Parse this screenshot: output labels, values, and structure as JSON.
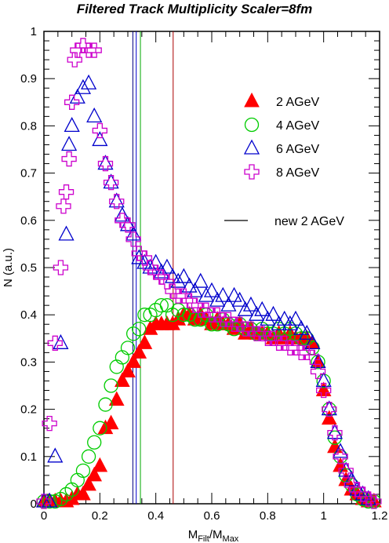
{
  "chart_data": {
    "type": "scatter",
    "title": "Filtered Track Multiplicity Scaler=8fm",
    "xlabel": {
      "main": "M",
      "sub1": "Filt",
      "sep": "/M",
      "sub2": "Max"
    },
    "ylabel": "N (a.u.)",
    "xlim": [
      0,
      1.2
    ],
    "ylim": [
      0,
      1
    ],
    "xticks": [
      "0",
      "0.2",
      "0.4",
      "0.6",
      "0.8",
      "1",
      "1.2"
    ],
    "yticks": [
      "0",
      "0.1",
      "0.2",
      "0.3",
      "0.4",
      "0.5",
      "0.6",
      "0.7",
      "0.8",
      "0.9",
      "1"
    ],
    "grid": false,
    "legend_position": "right",
    "legend_line_label": "new 2 AGeV",
    "vertical_lines": [
      {
        "x": 0.318,
        "color": "#000080"
      },
      {
        "x": 0.33,
        "color": "#0000cc"
      },
      {
        "x": 0.345,
        "color": "#00aa00"
      },
      {
        "x": 0.462,
        "color": "#aa0000"
      }
    ],
    "series": [
      {
        "name": "2 AGeV",
        "marker": "triangle-filled",
        "color": "#ff0000",
        "x": [
          0.0,
          0.02,
          0.04,
          0.06,
          0.08,
          0.1,
          0.12,
          0.14,
          0.16,
          0.18,
          0.2,
          0.22,
          0.24,
          0.26,
          0.28,
          0.3,
          0.32,
          0.34,
          0.36,
          0.38,
          0.4,
          0.42,
          0.44,
          0.46,
          0.48,
          0.5,
          0.52,
          0.54,
          0.56,
          0.58,
          0.6,
          0.62,
          0.64,
          0.66,
          0.68,
          0.7,
          0.72,
          0.74,
          0.76,
          0.78,
          0.8,
          0.82,
          0.84,
          0.86,
          0.88,
          0.9,
          0.92,
          0.94,
          0.96,
          0.98,
          1.0,
          1.02,
          1.04,
          1.06,
          1.08,
          1.1,
          1.12,
          1.14,
          1.16,
          1.18
        ],
        "y": [
          0.005,
          0.005,
          0.005,
          0.005,
          0.005,
          0.01,
          0.02,
          0.02,
          0.04,
          0.06,
          0.08,
          0.16,
          0.17,
          0.22,
          0.26,
          0.28,
          0.3,
          0.32,
          0.34,
          0.37,
          0.38,
          0.38,
          0.38,
          0.38,
          0.39,
          0.4,
          0.4,
          0.39,
          0.4,
          0.39,
          0.38,
          0.39,
          0.38,
          0.38,
          0.37,
          0.38,
          0.36,
          0.37,
          0.36,
          0.36,
          0.36,
          0.35,
          0.36,
          0.35,
          0.36,
          0.35,
          0.35,
          0.35,
          0.34,
          0.3,
          0.24,
          0.18,
          0.12,
          0.08,
          0.05,
          0.03,
          0.02,
          0.01,
          0.005,
          0.005
        ]
      },
      {
        "name": "4 AGeV",
        "marker": "circle-open",
        "color": "#00cc00",
        "x": [
          0.0,
          0.02,
          0.04,
          0.06,
          0.08,
          0.1,
          0.12,
          0.14,
          0.16,
          0.18,
          0.2,
          0.22,
          0.24,
          0.26,
          0.28,
          0.3,
          0.32,
          0.34,
          0.36,
          0.38,
          0.4,
          0.42,
          0.44,
          0.46,
          0.48,
          0.5,
          0.52,
          0.54,
          0.56,
          0.58,
          0.6,
          0.62,
          0.64,
          0.66,
          0.68,
          0.7,
          0.72,
          0.74,
          0.76,
          0.78,
          0.8,
          0.82,
          0.84,
          0.86,
          0.88,
          0.9,
          0.92,
          0.94,
          0.96,
          0.98,
          1.0,
          1.02,
          1.04,
          1.06,
          1.08,
          1.1,
          1.12,
          1.14,
          1.16,
          1.18
        ],
        "y": [
          0.005,
          0.005,
          0.005,
          0.01,
          0.02,
          0.03,
          0.05,
          0.07,
          0.1,
          0.13,
          0.16,
          0.21,
          0.25,
          0.29,
          0.31,
          0.33,
          0.36,
          0.37,
          0.4,
          0.4,
          0.41,
          0.42,
          0.42,
          0.4,
          0.41,
          0.4,
          0.4,
          0.39,
          0.39,
          0.4,
          0.38,
          0.38,
          0.39,
          0.38,
          0.37,
          0.38,
          0.37,
          0.37,
          0.36,
          0.37,
          0.36,
          0.36,
          0.37,
          0.36,
          0.37,
          0.36,
          0.35,
          0.35,
          0.33,
          0.3,
          0.26,
          0.2,
          0.14,
          0.1,
          0.06,
          0.04,
          0.02,
          0.01,
          0.005,
          0.005
        ]
      },
      {
        "name": "6 AGeV",
        "marker": "triangle-open",
        "color": "#0000cc",
        "x": [
          0.0,
          0.02,
          0.04,
          0.06,
          0.08,
          0.09,
          0.1,
          0.12,
          0.14,
          0.16,
          0.18,
          0.2,
          0.22,
          0.24,
          0.26,
          0.28,
          0.3,
          0.32,
          0.34,
          0.36,
          0.38,
          0.4,
          0.42,
          0.44,
          0.46,
          0.48,
          0.5,
          0.52,
          0.54,
          0.56,
          0.58,
          0.6,
          0.62,
          0.64,
          0.66,
          0.68,
          0.7,
          0.72,
          0.74,
          0.76,
          0.78,
          0.8,
          0.82,
          0.84,
          0.86,
          0.88,
          0.9,
          0.92,
          0.94,
          0.96,
          0.98,
          1.0,
          1.02,
          1.04,
          1.06,
          1.08,
          1.1,
          1.12,
          1.14,
          1.16
        ],
        "y": [
          0.005,
          0.005,
          0.1,
          0.34,
          0.57,
          0.76,
          0.8,
          0.86,
          0.88,
          0.89,
          0.82,
          0.77,
          0.72,
          0.68,
          0.64,
          0.61,
          0.59,
          0.57,
          0.52,
          0.51,
          0.5,
          0.51,
          0.49,
          0.5,
          0.48,
          0.47,
          0.48,
          0.46,
          0.45,
          0.47,
          0.44,
          0.45,
          0.43,
          0.44,
          0.42,
          0.44,
          0.43,
          0.41,
          0.42,
          0.4,
          0.41,
          0.39,
          0.4,
          0.38,
          0.39,
          0.38,
          0.39,
          0.37,
          0.36,
          0.34,
          0.3,
          0.26,
          0.2,
          0.15,
          0.11,
          0.07,
          0.05,
          0.03,
          0.02,
          0.01
        ]
      },
      {
        "name": "8 AGeV",
        "marker": "cross-open",
        "color": "#cc00cc",
        "x": [
          0.0,
          0.02,
          0.04,
          0.06,
          0.07,
          0.08,
          0.09,
          0.1,
          0.11,
          0.12,
          0.14,
          0.16,
          0.18,
          0.2,
          0.22,
          0.24,
          0.26,
          0.28,
          0.3,
          0.32,
          0.34,
          0.36,
          0.38,
          0.4,
          0.42,
          0.44,
          0.46,
          0.48,
          0.5,
          0.52,
          0.54,
          0.56,
          0.58,
          0.6,
          0.62,
          0.64,
          0.66,
          0.68,
          0.7,
          0.72,
          0.74,
          0.76,
          0.78,
          0.8,
          0.82,
          0.84,
          0.86,
          0.88,
          0.9,
          0.92,
          0.94,
          0.96,
          0.98,
          1.0,
          1.02,
          1.04,
          1.06,
          1.08,
          1.1,
          1.12,
          1.14,
          1.16,
          1.18
        ],
        "y": [
          0.005,
          0.17,
          0.34,
          0.5,
          0.63,
          0.66,
          0.73,
          0.85,
          0.94,
          0.96,
          0.97,
          0.96,
          0.96,
          0.79,
          0.72,
          0.68,
          0.64,
          0.6,
          0.59,
          0.56,
          0.53,
          0.52,
          0.5,
          0.49,
          0.48,
          0.47,
          0.45,
          0.44,
          0.44,
          0.43,
          0.42,
          0.41,
          0.41,
          0.4,
          0.4,
          0.39,
          0.39,
          0.38,
          0.38,
          0.37,
          0.37,
          0.36,
          0.36,
          0.35,
          0.35,
          0.34,
          0.34,
          0.33,
          0.33,
          0.32,
          0.32,
          0.31,
          0.28,
          0.24,
          0.2,
          0.15,
          0.1,
          0.07,
          0.04,
          0.03,
          0.02,
          0.01,
          0.005
        ]
      }
    ]
  }
}
